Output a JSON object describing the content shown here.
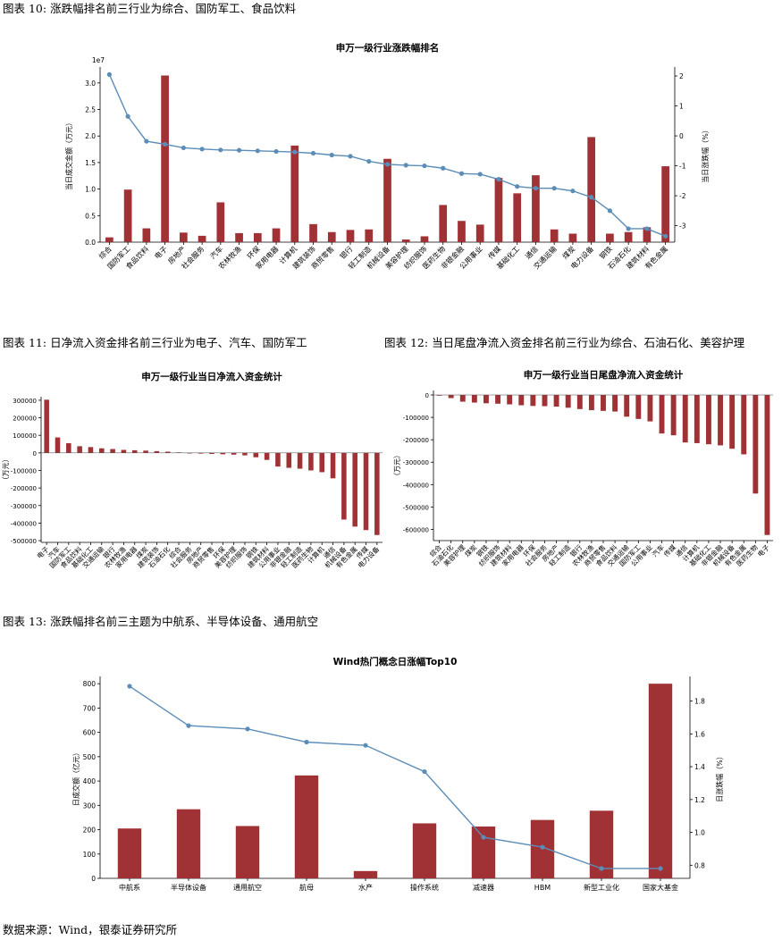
{
  "captions": {
    "fig10": "图表 10: 涨跌幅排名前三行业为综合、国防军工、食品饮料",
    "fig11": "图表 11: 日净流入资金排名前三行业为电子、汽车、国防军工",
    "fig12": "图表 12: 当日尾盘净流入资金排名前三行业为综合、石油石化、美容护理",
    "fig13": "图表 13: 涨跌幅排名前三主题为中航系、半导体设备、通用航空"
  },
  "source": "数据来源：Wind，银泰证券研究所",
  "colors": {
    "bar": "#a03236",
    "line": "#5b8db8",
    "axis": "#000000"
  },
  "chart_data": [
    {
      "id": "industry-rank",
      "type": "bar",
      "title": "申万一级行业涨跌幅排名",
      "ylabel": "当日成交金额（万元）",
      "y2label": "当日涨跌幅（%）",
      "scale_label": "1e7",
      "ylim": [
        0,
        3.3
      ],
      "y2lim": [
        -3.55,
        2.3
      ],
      "yticks": [
        "0.0",
        "0.5",
        "1.0",
        "1.5",
        "2.0",
        "2.5",
        "3.0"
      ],
      "y2ticks": [
        "-3",
        "-2",
        "-1",
        "0",
        "1",
        "2"
      ],
      "categories": [
        "综合",
        "国防军工",
        "食品饮料",
        "电子",
        "房地产",
        "社会服务",
        "汽车",
        "农林牧渔",
        "环保",
        "家用电器",
        "计算机",
        "建筑装饰",
        "商贸零售",
        "银行",
        "轻工制造",
        "机械设备",
        "美容护理",
        "纺织服饰",
        "医药生物",
        "非银金融",
        "公用事业",
        "传媒",
        "基础化工",
        "通信",
        "交通运输",
        "煤炭",
        "电力设备",
        "钢铁",
        "石油石化",
        "建筑材料",
        "有色金属"
      ],
      "series": [
        {
          "name": "当日成交金额",
          "kind": "bar",
          "values": [
            0.09,
            0.99,
            0.26,
            3.14,
            0.18,
            0.12,
            0.75,
            0.17,
            0.17,
            0.26,
            1.82,
            0.34,
            0.19,
            0.23,
            0.24,
            1.57,
            0.05,
            0.11,
            0.7,
            0.4,
            0.33,
            1.21,
            0.92,
            1.26,
            0.24,
            0.16,
            1.98,
            0.16,
            0.19,
            0.28,
            1.43
          ]
        },
        {
          "name": "当日涨跌幅",
          "kind": "line",
          "values": [
            2.05,
            0.65,
            -0.18,
            -0.28,
            -0.4,
            -0.44,
            -0.47,
            -0.48,
            -0.5,
            -0.52,
            -0.54,
            -0.58,
            -0.64,
            -0.68,
            -0.85,
            -0.95,
            -0.98,
            -1.0,
            -1.08,
            -1.26,
            -1.28,
            -1.45,
            -1.69,
            -1.75,
            -1.75,
            -1.84,
            -2.05,
            -2.5,
            -3.1,
            -3.1,
            -3.35
          ]
        }
      ]
    },
    {
      "id": "net-inflow",
      "type": "bar",
      "title": "申万一级行业当日净流入资金统计",
      "ylabel": "（万元）",
      "ylim": [
        -510000,
        320000
      ],
      "yticks": [
        "300000",
        "200000",
        "100000",
        "0",
        "-100000",
        "-200000",
        "-300000",
        "-400000",
        "-500000"
      ],
      "categories": [
        "电子",
        "汽车",
        "国防军工",
        "食品饮料",
        "基础化工",
        "交通运输",
        "银行",
        "农林牧渔",
        "家用电器",
        "煤炭",
        "建筑装饰",
        "石油石化",
        "综合",
        "社会服务",
        "房地产",
        "商贸零售",
        "环保",
        "美容护理",
        "纺织服饰",
        "钢铁",
        "建筑材料",
        "公用事业",
        "非银金融",
        "轻工制造",
        "医药生物",
        "计算机",
        "通信",
        "机械设备",
        "有色金属",
        "传媒",
        "电力设备"
      ],
      "values": [
        303000,
        88000,
        55000,
        38000,
        33000,
        26000,
        22000,
        17000,
        15000,
        13000,
        10000,
        7000,
        3000,
        -2000,
        -4000,
        -6000,
        -8000,
        -10000,
        -14000,
        -25000,
        -40000,
        -78000,
        -85000,
        -90000,
        -100000,
        -110000,
        -145000,
        -380000,
        -420000,
        -440000,
        -468000
      ]
    },
    {
      "id": "closing-inflow",
      "type": "bar",
      "title": "申万一级行业当日尾盘净流入资金统计",
      "ylabel": "（万元）",
      "ylim": [
        -650000,
        20000
      ],
      "yticks": [
        "0",
        "-100000",
        "-200000",
        "-300000",
        "-400000",
        "-500000",
        "-600000"
      ],
      "categories": [
        "综合",
        "石油石化",
        "美容护理",
        "煤炭",
        "钢铁",
        "纺织服饰",
        "建筑材料",
        "家用电器",
        "环保",
        "社会服务",
        "房地产",
        "轻工制造",
        "银行",
        "农林牧渔",
        "商贸零售",
        "食品饮料",
        "交通运输",
        "国防军工",
        "公用事业",
        "汽车",
        "传媒",
        "通信",
        "计算机",
        "基础化工",
        "非银金融",
        "机械设备",
        "有色金属",
        "医药生物",
        "电子"
      ],
      "values": [
        -3000,
        -14000,
        -30000,
        -34000,
        -37000,
        -39000,
        -42000,
        -46000,
        -49000,
        -50000,
        -52000,
        -57000,
        -63000,
        -68000,
        -71000,
        -74000,
        -97000,
        -107000,
        -118000,
        -172000,
        -180000,
        -212000,
        -215000,
        -220000,
        -225000,
        -240000,
        -265000,
        -440000,
        -625000
      ]
    },
    {
      "id": "concept-top10",
      "type": "bar",
      "title": "Wind热门概念日涨幅Top10",
      "ylabel": "日成交额（亿元）",
      "y2label": "日涨跌幅（%）",
      "ylim": [
        0,
        830
      ],
      "y2lim": [
        0.72,
        1.95
      ],
      "yticks": [
        "0",
        "100",
        "200",
        "300",
        "400",
        "500",
        "600",
        "700",
        "800"
      ],
      "y2ticks": [
        "0.8",
        "1.0",
        "1.2",
        "1.4",
        "1.6",
        "1.8"
      ],
      "categories": [
        "中航系",
        "半导体设备",
        "通用航空",
        "航母",
        "水产",
        "操作系统",
        "减速器",
        "HBM",
        "新型工业化",
        "国家大基金"
      ],
      "series": [
        {
          "name": "日成交额",
          "kind": "bar",
          "values": [
            205,
            284,
            215,
            423,
            30,
            226,
            213,
            240,
            278,
            800
          ]
        },
        {
          "name": "日涨跌幅",
          "kind": "line",
          "values": [
            1.89,
            1.65,
            1.63,
            1.55,
            1.53,
            1.37,
            0.97,
            0.91,
            0.78,
            0.78
          ]
        }
      ]
    }
  ]
}
